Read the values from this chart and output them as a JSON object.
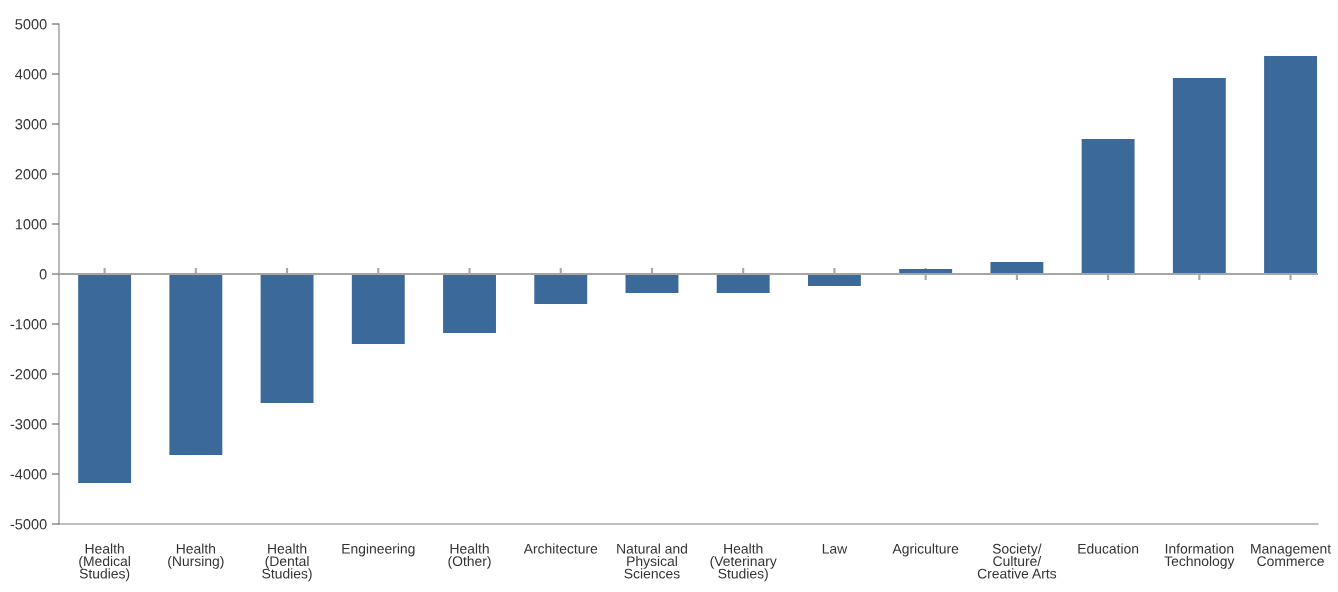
{
  "chart_data": {
    "type": "bar",
    "categories": [
      "Health\n(Medical\nStudies)",
      "Health\n(Nursing)",
      "Health\n(Dental\nStudies)",
      "Engineering",
      "Health\n(Other)",
      "Architecture",
      "Natural and\nPhysical\nSciences",
      "Health\n(Veterinary\nStudies)",
      "Law",
      "Agriculture",
      "Society/\nCulture/\nCreative Arts",
      "Education",
      "Information\nTechnology",
      "Management\nCommerce"
    ],
    "values": [
      -4180,
      -3620,
      -2580,
      -1400,
      -1180,
      -600,
      -380,
      -380,
      -240,
      100,
      240,
      2700,
      3920,
      4360
    ],
    "color": "#3b6a9a",
    "ylim": [
      -5000,
      5000
    ],
    "yticks": [
      -5000,
      -4000,
      -3000,
      -2000,
      -1000,
      0,
      1000,
      2000,
      3000,
      4000,
      5000
    ],
    "ref_lines": [
      {
        "axis": "y",
        "value": 0,
        "color": "#a6a6a6"
      }
    ],
    "grid": false,
    "legend": false
  }
}
